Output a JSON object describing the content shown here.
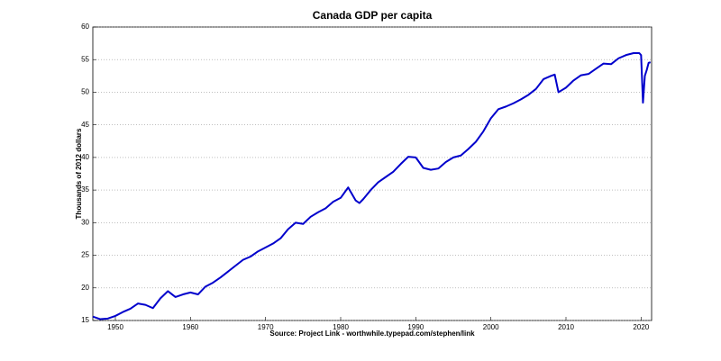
{
  "chart_data": {
    "type": "line",
    "title": "Canada GDP per capita",
    "ylabel": "Thousands of 2012 dollars",
    "xlabel": "Source: Project Link - worthwhile.typepad.com/stephen/link",
    "color": "#0000cc",
    "grid": "y",
    "xlim": [
      1947,
      2021.4
    ],
    "ylim": [
      15,
      60
    ],
    "xticks": [
      1950,
      1960,
      1970,
      1980,
      1990,
      2000,
      2010,
      2020
    ],
    "yticks": [
      15,
      20,
      25,
      30,
      35,
      40,
      45,
      50,
      55,
      60
    ],
    "x": [
      1947,
      1948,
      1949,
      1950,
      1951,
      1952,
      1953,
      1954,
      1955,
      1956,
      1957,
      1958,
      1959,
      1960,
      1961,
      1962,
      1963,
      1964,
      1965,
      1966,
      1967,
      1968,
      1969,
      1970,
      1971,
      1972,
      1973,
      1974,
      1975,
      1976,
      1977,
      1978,
      1979,
      1980,
      1981,
      1982,
      1982.5,
      1983,
      1984,
      1985,
      1986,
      1987,
      1988,
      1989,
      1990,
      1991,
      1992,
      1993,
      1994,
      1995,
      1996,
      1997,
      1998,
      1999,
      2000,
      2001,
      2002,
      2003,
      2004,
      2005,
      2006,
      2007,
      2008,
      2008.5,
      2009,
      2010,
      2011,
      2012,
      2013,
      2014,
      2015,
      2016,
      2017,
      2018,
      2019,
      2019.75,
      2020,
      2020.25,
      2020.5,
      2020.75,
      2021,
      2021.25
    ],
    "values": [
      15.6,
      15.2,
      15.3,
      15.7,
      16.3,
      16.8,
      17.6,
      17.4,
      16.9,
      18.4,
      19.5,
      18.6,
      19.0,
      19.3,
      19.0,
      20.2,
      20.8,
      21.6,
      22.5,
      23.4,
      24.3,
      24.8,
      25.6,
      26.2,
      26.8,
      27.6,
      29.0,
      30.0,
      29.8,
      30.9,
      31.6,
      32.2,
      33.2,
      33.8,
      35.4,
      33.4,
      33.0,
      33.6,
      35.0,
      36.2,
      37.0,
      37.8,
      39.0,
      40.1,
      40.0,
      38.4,
      38.1,
      38.3,
      39.3,
      40.0,
      40.3,
      41.3,
      42.4,
      44.0,
      46.0,
      47.4,
      47.8,
      48.3,
      48.9,
      49.6,
      50.5,
      52.0,
      52.5,
      52.7,
      50.0,
      50.7,
      51.8,
      52.6,
      52.8,
      53.6,
      54.4,
      54.3,
      55.2,
      55.7,
      56.0,
      56.0,
      55.7,
      48.4,
      52.5,
      53.4,
      54.5,
      54.6
    ]
  }
}
